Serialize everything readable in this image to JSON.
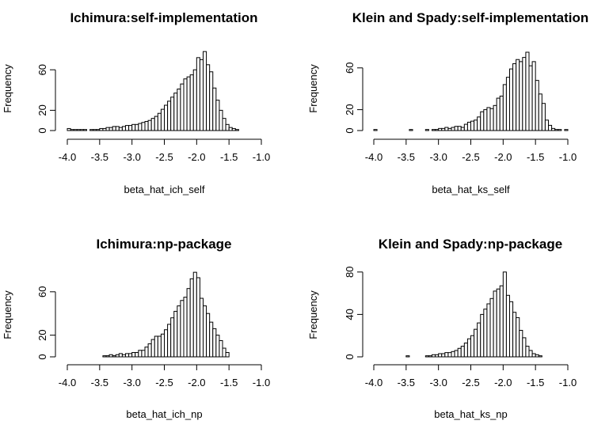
{
  "chart_data": [
    {
      "type": "bar",
      "title": "Ichimura:self-implementation",
      "xlabel": "beta_hat_ich_self",
      "ylabel": "Frequency",
      "xlim": [
        -4.0,
        -1.0
      ],
      "xticks": [
        "-4.0",
        "-3.5",
        "-3.0",
        "-2.5",
        "-2.0",
        "-1.5",
        "-1.0"
      ],
      "yticks": [
        "0",
        "20",
        "60"
      ],
      "bin_start": -4.0,
      "bin_width": 0.05,
      "values": [
        2,
        1,
        1,
        1,
        1,
        1,
        0,
        1,
        1,
        1,
        2,
        2,
        3,
        3,
        4,
        4,
        3,
        4,
        5,
        5,
        6,
        6,
        7,
        8,
        9,
        10,
        12,
        14,
        17,
        21,
        25,
        29,
        33,
        37,
        41,
        46,
        51,
        53,
        55,
        60,
        72,
        70,
        78,
        65,
        58,
        42,
        30,
        20,
        12,
        6,
        3,
        2,
        1,
        0,
        0,
        0,
        0,
        0,
        0,
        0
      ],
      "ylim": [
        0,
        80
      ]
    },
    {
      "type": "bar",
      "title": "Klein and Spady:self-implementation",
      "xlabel": "beta_hat_ks_self",
      "ylabel": "Frequency",
      "xlim": [
        -4.0,
        -1.0
      ],
      "xticks": [
        "-4.0",
        "-3.5",
        "-3.0",
        "-2.5",
        "-2.0",
        "-1.5",
        "-1.0"
      ],
      "yticks": [
        "0",
        "20",
        "60"
      ],
      "bin_start": -4.0,
      "bin_width": 0.05,
      "values": [
        1,
        0,
        0,
        0,
        0,
        0,
        0,
        0,
        0,
        0,
        0,
        1,
        0,
        0,
        0,
        0,
        1,
        0,
        1,
        1,
        2,
        2,
        3,
        2,
        3,
        4,
        4,
        3,
        6,
        8,
        9,
        10,
        13,
        18,
        20,
        22,
        21,
        24,
        31,
        33,
        44,
        51,
        59,
        64,
        68,
        66,
        70,
        75,
        62,
        66,
        48,
        35,
        26,
        10,
        5,
        2,
        1,
        1,
        0,
        1
      ],
      "ylim": [
        0,
        80
      ]
    },
    {
      "type": "bar",
      "title": "Ichimura:np-package",
      "xlabel": "beta_hat_ich_np",
      "ylabel": "Frequency",
      "xlim": [
        -4.0,
        -1.0
      ],
      "xticks": [
        "-4.0",
        "-3.5",
        "-3.0",
        "-2.5",
        "-2.0",
        "-1.5",
        "-1.0"
      ],
      "yticks": [
        "0",
        "20",
        "60"
      ],
      "bin_start": -4.0,
      "bin_width": 0.05,
      "values": [
        0,
        0,
        0,
        0,
        0,
        0,
        0,
        0,
        0,
        0,
        0,
        1,
        1,
        2,
        1,
        2,
        3,
        2,
        3,
        3,
        4,
        4,
        6,
        6,
        9,
        12,
        16,
        19,
        19,
        21,
        25,
        30,
        36,
        42,
        47,
        52,
        55,
        63,
        72,
        78,
        73,
        54,
        47,
        40,
        32,
        26,
        20,
        15,
        8,
        4,
        0,
        0,
        0,
        0,
        0,
        0,
        0,
        0,
        0,
        0
      ],
      "ylim": [
        0,
        80
      ]
    },
    {
      "type": "bar",
      "title": "Klein and Spady:np-package",
      "xlabel": "beta_hat_ks_np",
      "ylabel": "Frequency",
      "xlim": [
        -4.0,
        -1.0
      ],
      "xticks": [
        "-4.0",
        "-3.5",
        "-3.0",
        "-2.5",
        "-2.0",
        "-1.5",
        "-1.0"
      ],
      "yticks": [
        "0",
        "40",
        "80"
      ],
      "bin_start": -4.0,
      "bin_width": 0.05,
      "values": [
        0,
        0,
        0,
        0,
        0,
        0,
        0,
        0,
        0,
        0,
        1,
        0,
        0,
        0,
        0,
        0,
        1,
        1,
        2,
        2,
        3,
        3,
        4,
        4,
        5,
        6,
        8,
        10,
        13,
        17,
        20,
        26,
        32,
        40,
        45,
        50,
        55,
        62,
        64,
        67,
        80,
        58,
        52,
        42,
        37,
        25,
        18,
        10,
        6,
        3,
        2,
        1,
        0,
        0,
        0,
        0,
        0,
        0,
        0,
        0
      ],
      "ylim": [
        0,
        80
      ]
    }
  ]
}
